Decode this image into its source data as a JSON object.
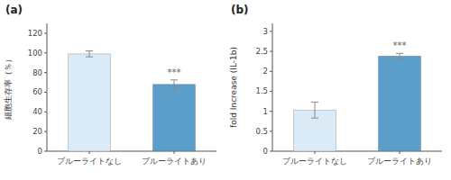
{
  "chart_data": [
    {
      "type": "bar",
      "title": "(a)",
      "categories": [
        "ブルーライトなし",
        "ブルーライトあり"
      ],
      "values": [
        99.0,
        68.0
      ],
      "errors": [
        3.0,
        4.5
      ],
      "colors": [
        "#daeaf6",
        "#5b9ec9"
      ],
      "y_label": "細胞生存率（％）",
      "ylim": [
        0,
        130
      ],
      "yticks": [
        0,
        20,
        40,
        60,
        80,
        100,
        120
      ],
      "annotations": [
        {
          "text": "***",
          "x": "ブルーライトあり"
        }
      ]
    },
    {
      "type": "bar",
      "title": "(b)",
      "categories": [
        "ブルーライトなし",
        "ブルーライトあり"
      ],
      "values": [
        1.03,
        2.38
      ],
      "errors": [
        0.2,
        0.07
      ],
      "colors": [
        "#daeaf6",
        "#5b9ec9"
      ],
      "y_label": "fold Increase (IL-1b)",
      "ylim": [
        0,
        3.2
      ],
      "yticks": [
        0,
        0.5,
        1,
        1.5,
        2,
        2.5,
        3
      ],
      "annotations": [
        {
          "text": "***",
          "x": "ブルーライトあり"
        }
      ]
    }
  ]
}
